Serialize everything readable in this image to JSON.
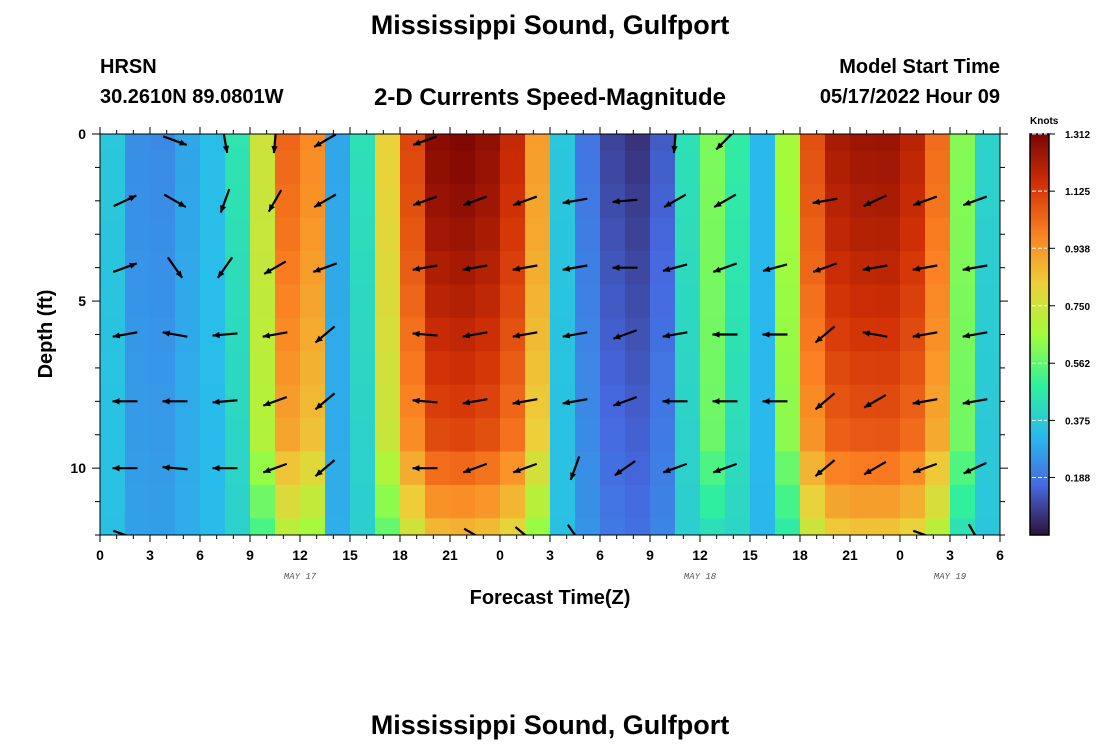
{
  "header": {
    "title": "Mississippi Sound, Gulfport",
    "station": "HRSN",
    "coords": "30.2610N  89.0801W",
    "subtitle": "2-D Currents Speed-Magnitude",
    "model_start_label": "Model Start Time",
    "model_start_value": "05/17/2022 Hour 09",
    "repeated_title": "Mississippi Sound, Gulfport"
  },
  "colors": {
    "colormap": [
      "#30123b",
      "#4669e0",
      "#29bbec",
      "#31f299",
      "#a2fc3c",
      "#edd03a",
      "#fb8022",
      "#d23105",
      "#7a0403"
    ]
  },
  "chart_data": {
    "type": "heatmap",
    "title": "2-D Currents Speed-Magnitude",
    "xlabel": "Forecast Time(Z)",
    "ylabel": "Depth (ft)",
    "x_tick_labels": [
      "0",
      "3",
      "6",
      "9",
      "12",
      "15",
      "18",
      "21",
      "0",
      "3",
      "6",
      "9",
      "12",
      "15",
      "18",
      "21",
      "0",
      "3",
      "6"
    ],
    "x_range_hours": [
      0,
      54
    ],
    "y_tick_labels": [
      "0",
      "5",
      "10"
    ],
    "y_tick_values": [
      0,
      5,
      10
    ],
    "y_range_ft": [
      0,
      12
    ],
    "date_labels": [
      {
        "text": "MAY 17",
        "hour": 12
      },
      {
        "text": "MAY 18",
        "hour": 36
      },
      {
        "text": "MAY 19",
        "hour": 51
      }
    ],
    "colorbar": {
      "unit": "Knots",
      "min": 0,
      "max": 1.312,
      "ticks": [
        "1.312",
        "1.125",
        "0.938",
        "0.750",
        "0.562",
        "0.375",
        "0.188"
      ],
      "tick_values": [
        1.312,
        1.125,
        0.938,
        0.75,
        0.562,
        0.375,
        0.188
      ]
    },
    "depths_ft": [
      0,
      1,
      2,
      3,
      4,
      5,
      6,
      7,
      8,
      9,
      10,
      11,
      12
    ],
    "surface_speed_profile_knots": [
      [
        0,
        0.55
      ],
      [
        1,
        0.3
      ],
      [
        3,
        0.2
      ],
      [
        5,
        0.28
      ],
      [
        6,
        0.3
      ],
      [
        8,
        0.4
      ],
      [
        9,
        0.6
      ],
      [
        11,
        1.0
      ],
      [
        12,
        1.15
      ],
      [
        13,
        0.9
      ],
      [
        14,
        0.3
      ],
      [
        15,
        0.25
      ],
      [
        16,
        0.5
      ],
      [
        18,
        1.0
      ],
      [
        20,
        1.28
      ],
      [
        22,
        1.3
      ],
      [
        24,
        1.25
      ],
      [
        26,
        1.05
      ],
      [
        27,
        0.55
      ],
      [
        28,
        0.3
      ],
      [
        30,
        0.12
      ],
      [
        32,
        0.05
      ],
      [
        34,
        0.15
      ],
      [
        35,
        0.4
      ],
      [
        36,
        0.55
      ],
      [
        37,
        0.62
      ],
      [
        38,
        0.5
      ],
      [
        40,
        0.3
      ],
      [
        41,
        0.55
      ],
      [
        42,
        1.0
      ],
      [
        44,
        1.22
      ],
      [
        46,
        1.25
      ],
      [
        48,
        1.25
      ],
      [
        50,
        1.1
      ],
      [
        51,
        0.8
      ],
      [
        52,
        0.55
      ],
      [
        53,
        0.4
      ],
      [
        54,
        0.38
      ]
    ],
    "vector_columns_hours": [
      1.5,
      4.5,
      7.5,
      10.5,
      13.5,
      19.5,
      22.5,
      25.5,
      28.5,
      31.5,
      34.5,
      37.5,
      40.5,
      43.5,
      46.5,
      49.5,
      52.5
    ],
    "vector_depths_ft": [
      0.2,
      2,
      4,
      6,
      8,
      10,
      12
    ],
    "vector_direction_deg": [
      [
        null,
        -20,
        -80,
        -95,
        -150,
        -160,
        null,
        null,
        null,
        null,
        -95,
        -135,
        null,
        null,
        null,
        null,
        null
      ],
      [
        25,
        -30,
        -110,
        -120,
        -150,
        -160,
        -160,
        -160,
        -170,
        -175,
        -150,
        -150,
        null,
        -170,
        -155,
        -160,
        -160
      ],
      [
        20,
        -55,
        -125,
        -150,
        -160,
        -170,
        -170,
        -170,
        -170,
        -180,
        -165,
        -160,
        -165,
        -160,
        -170,
        -170,
        -170
      ],
      [
        -170,
        170,
        -175,
        -170,
        -140,
        175,
        -170,
        -170,
        -170,
        -160,
        -170,
        -180,
        -180,
        -140,
        170,
        -170,
        -170
      ],
      [
        -180,
        180,
        -175,
        -160,
        -140,
        175,
        -170,
        -170,
        -170,
        -160,
        -180,
        -180,
        -180,
        -140,
        -150,
        -170,
        -170
      ],
      [
        -180,
        175,
        180,
        -160,
        -140,
        180,
        -160,
        -160,
        -110,
        -145,
        -160,
        -160,
        null,
        -140,
        -150,
        -160,
        -155
      ],
      [
        -20,
        null,
        null,
        null,
        null,
        null,
        -30,
        -40,
        -55,
        null,
        null,
        null,
        null,
        null,
        null,
        -20,
        -60
      ]
    ]
  }
}
